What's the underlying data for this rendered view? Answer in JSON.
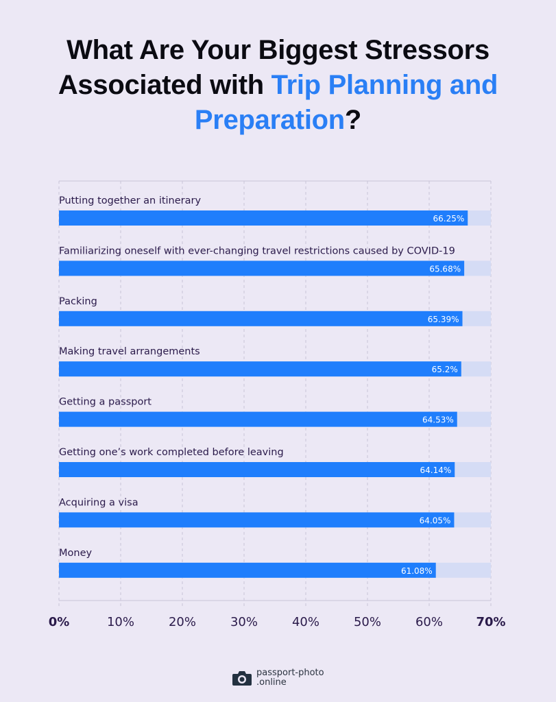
{
  "title": {
    "part1": "What Are Your Biggest Stressors Associated with ",
    "highlight": "Trip Planning and Preparation",
    "part2": "?"
  },
  "colors": {
    "bar": "#1f7efc",
    "track": "#d5dcf5",
    "highlight": "#2a7ff5",
    "background": "#ece8f5"
  },
  "chart_data": {
    "type": "bar",
    "orientation": "horizontal",
    "categories": [
      "Putting together an itinerary",
      "Familiarizing oneself with ever-changing travel restrictions caused by COVID-19",
      "Packing",
      "Making travel arrangements",
      "Getting a passport",
      "Getting one’s work completed before leaving",
      "Acquiring a visa",
      "Money"
    ],
    "values": [
      66.25,
      65.68,
      65.39,
      65.2,
      64.53,
      64.14,
      64.05,
      61.08
    ],
    "data_labels": [
      "66.25%",
      "65.68%",
      "65.39%",
      "65.2%",
      "64.53%",
      "64.14%",
      "64.05%",
      "61.08%"
    ],
    "xlim": [
      0,
      70
    ],
    "xticks": [
      "0%",
      "10%",
      "20%",
      "30%",
      "40%",
      "50%",
      "60%",
      "70%"
    ],
    "grid": true
  },
  "logo": {
    "line1": "passport-photo",
    "line2": ".online",
    "icon": "camera-icon"
  }
}
